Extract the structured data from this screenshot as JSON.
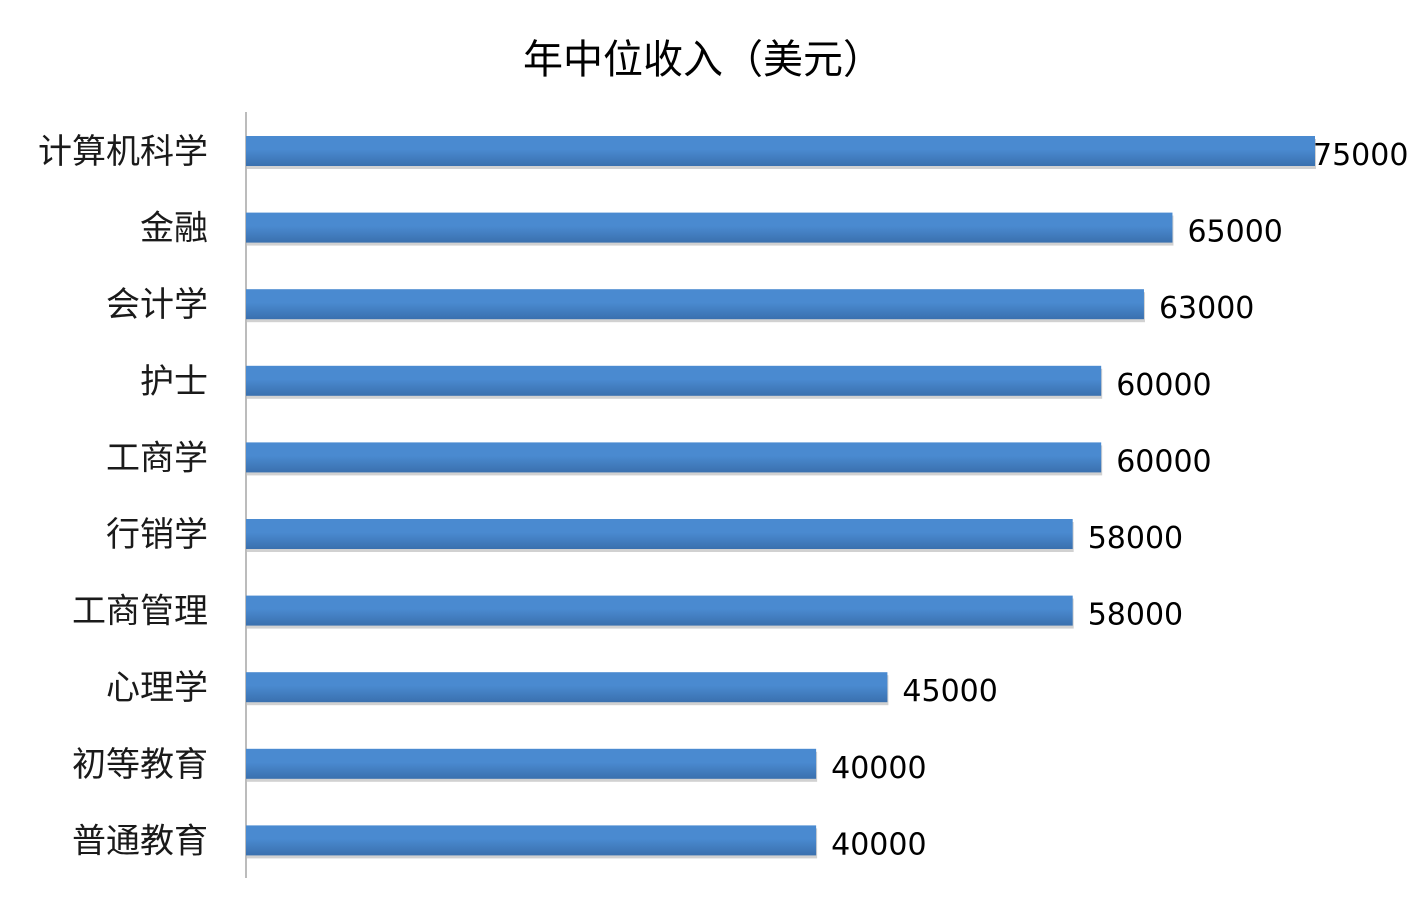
{
  "chart_data": {
    "type": "bar",
    "orientation": "horizontal",
    "title": "年中位收入（美元）",
    "categories": [
      "计算机科学",
      "金融",
      "会计学",
      "护士",
      "工商学",
      "行销学",
      "工商管理",
      "心理学",
      "初等教育",
      "普通教育"
    ],
    "values": [
      75000,
      65000,
      63000,
      60000,
      60000,
      58000,
      58000,
      45000,
      40000,
      40000
    ],
    "value_labels": [
      "75000",
      "65000",
      "63000",
      "60000",
      "60000",
      "58000",
      "58000",
      "45000",
      "40000",
      "40000"
    ],
    "xlim": [
      0,
      75000
    ],
    "grid": false,
    "legend": "none",
    "bar_color": "#4a8ad0",
    "bar_color_dark": "#3a70ae"
  }
}
